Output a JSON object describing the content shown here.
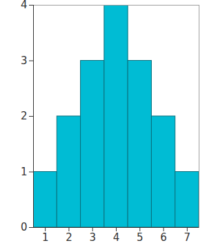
{
  "chart_data": {
    "type": "histogram",
    "bins": [
      0.5,
      1.5,
      2.5,
      3.5,
      4.5,
      5.5,
      6.5,
      7.5
    ],
    "values": [
      1,
      2,
      3,
      4,
      3,
      2,
      1
    ],
    "color": "#00bcd4",
    "xlim": [
      0.5,
      7.5
    ],
    "xticks": [
      1,
      2,
      3,
      4,
      5,
      6,
      7
    ],
    "ylim": [
      0,
      4
    ],
    "yticks": [
      0,
      1,
      2,
      3,
      4
    ]
  }
}
